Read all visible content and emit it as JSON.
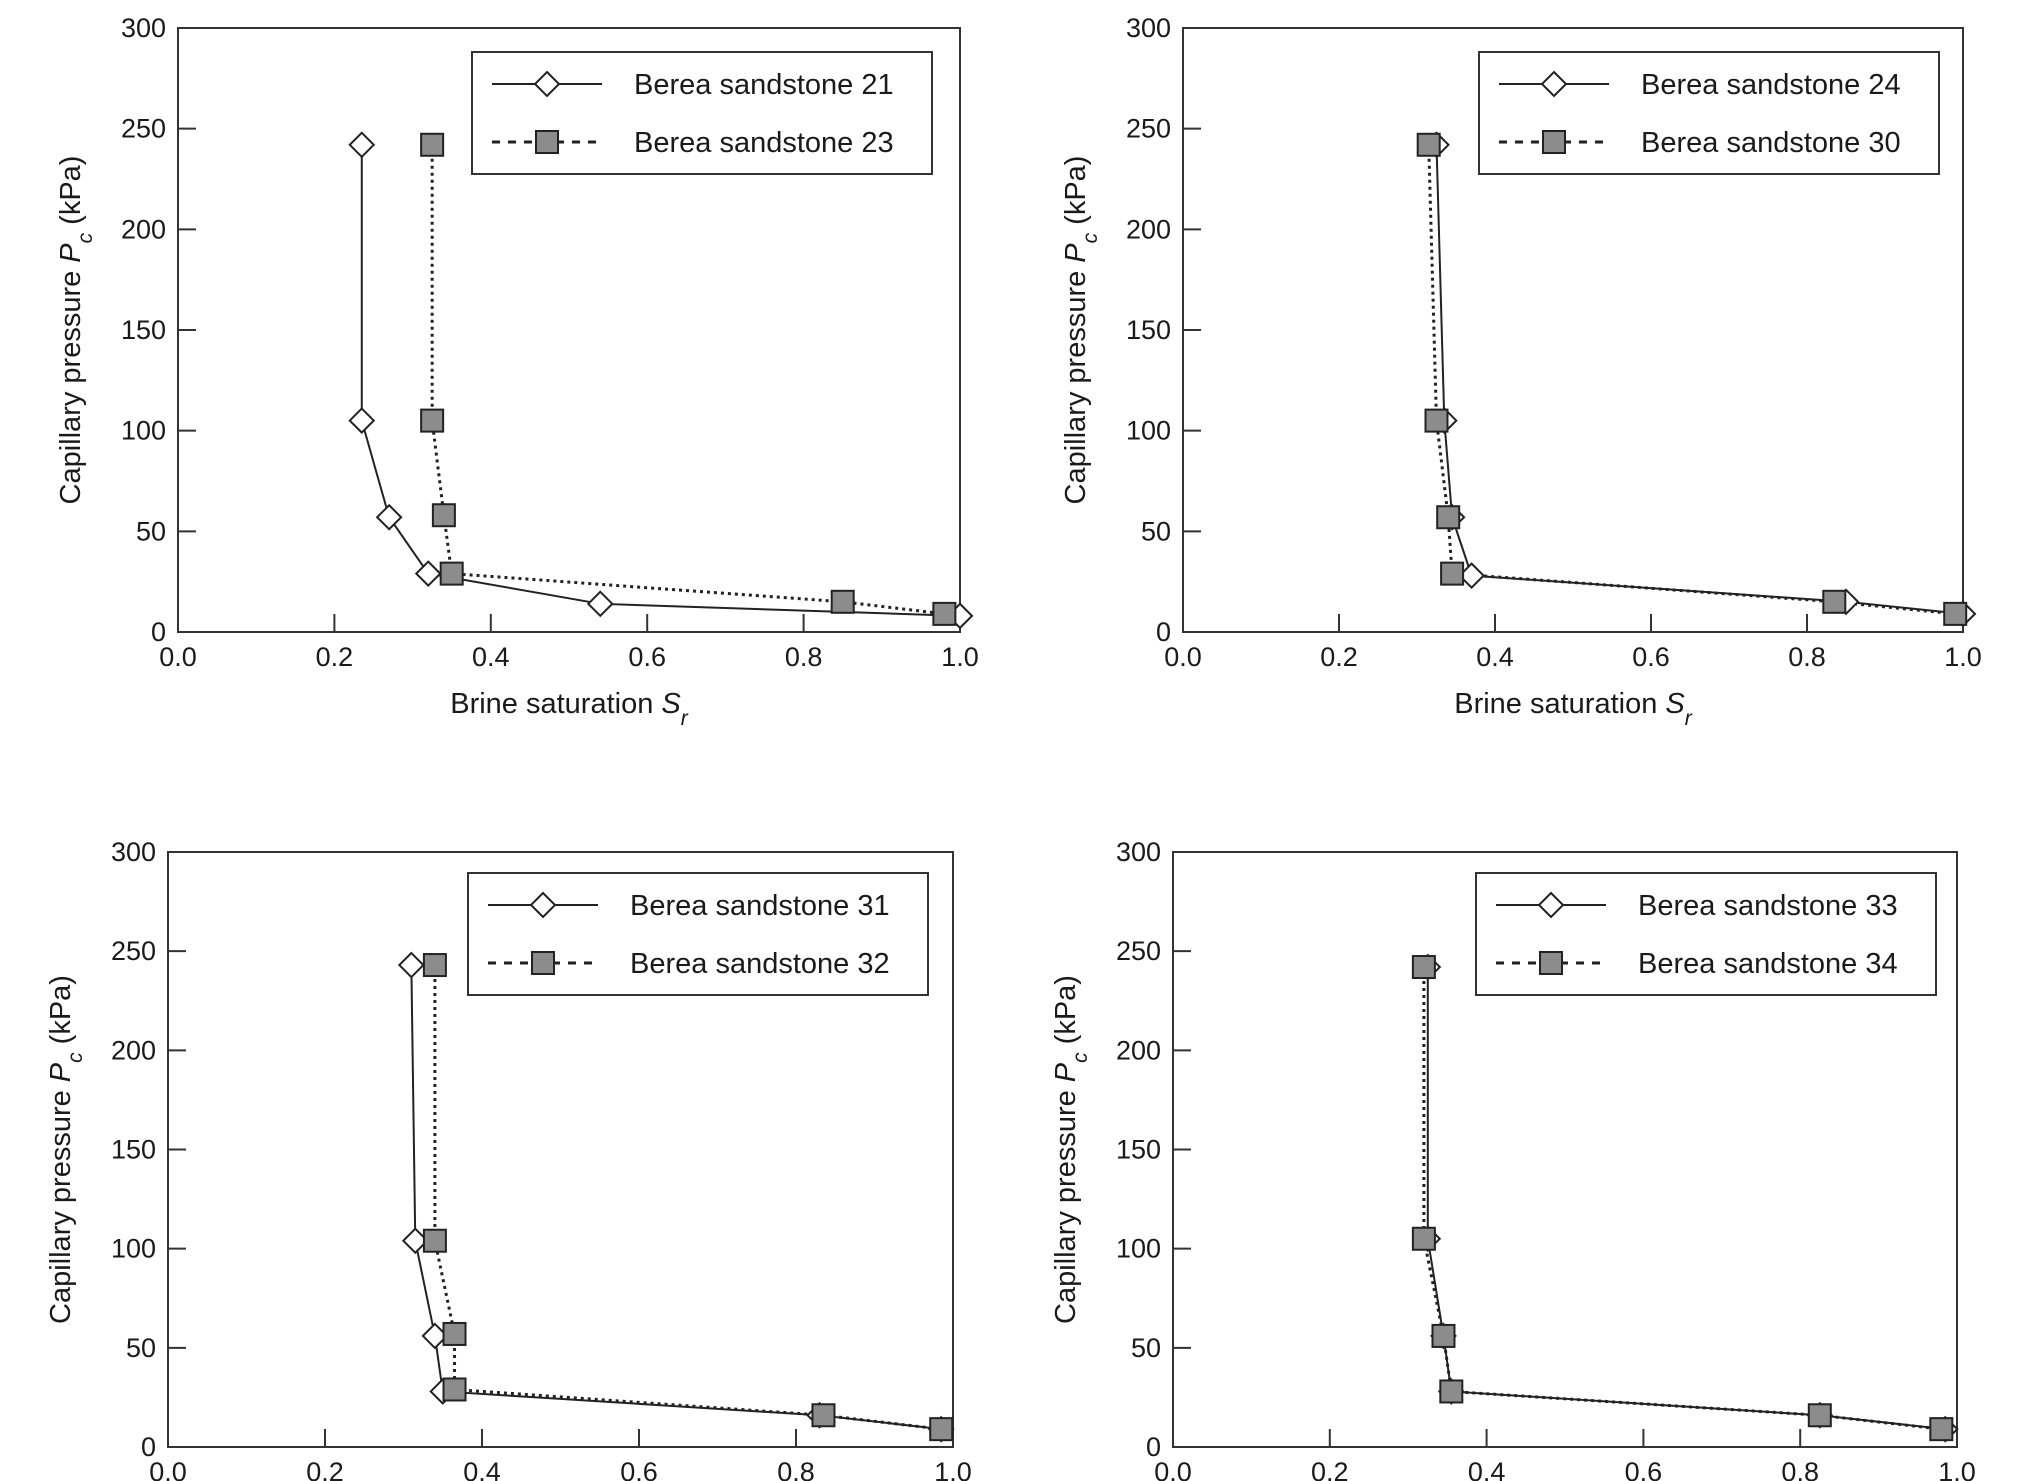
{
  "chart_data": [
    {
      "type": "line",
      "xlabel": "Brine saturation",
      "xlabel_symbol": "S",
      "xlabel_sub": "r",
      "ylabel": "Capillary pressure",
      "ylabel_symbol": "P",
      "ylabel_sub": "c",
      "ylabel_unit": "(kPa)",
      "xlim": [
        0,
        1
      ],
      "ylim": [
        0,
        300
      ],
      "xticks": [
        "0.0",
        "0.2",
        "0.4",
        "0.6",
        "0.8",
        "1.0"
      ],
      "yticks": [
        "0",
        "50",
        "100",
        "150",
        "200",
        "250",
        "300"
      ],
      "grid": false,
      "legend_position": "top-right",
      "series": [
        {
          "name": "Berea sandstone 21",
          "marker": "diamond",
          "line": "solid",
          "x": [
            0.235,
            0.235,
            0.27,
            0.32,
            0.54,
            1.0
          ],
          "y": [
            242,
            105,
            57,
            29,
            14,
            8
          ]
        },
        {
          "name": "Berea sandstone 23",
          "marker": "square",
          "line": "dotted",
          "x": [
            0.325,
            0.325,
            0.34,
            0.35,
            0.85,
            0.98
          ],
          "y": [
            242,
            105,
            58,
            29,
            15,
            9
          ]
        }
      ]
    },
    {
      "type": "line",
      "xlabel": "Brine saturation",
      "xlabel_symbol": "S",
      "xlabel_sub": "r",
      "ylabel": "Capillary pressure",
      "ylabel_symbol": "P",
      "ylabel_sub": "c",
      "ylabel_unit": "(kPa)",
      "xlim": [
        0,
        1
      ],
      "ylim": [
        0,
        300
      ],
      "xticks": [
        "0.0",
        "0.2",
        "0.4",
        "0.6",
        "0.8",
        "1.0"
      ],
      "yticks": [
        "0",
        "50",
        "100",
        "150",
        "200",
        "250",
        "300"
      ],
      "grid": false,
      "legend_position": "top-right",
      "series": [
        {
          "name": "Berea sandstone 24",
          "marker": "diamond",
          "line": "solid",
          "x": [
            0.325,
            0.335,
            0.345,
            0.37,
            0.85,
            1.0
          ],
          "y": [
            242,
            105,
            57,
            28,
            15,
            9
          ]
        },
        {
          "name": "Berea sandstone 30",
          "marker": "square",
          "line": "dotted",
          "x": [
            0.315,
            0.325,
            0.34,
            0.345,
            0.835,
            0.99
          ],
          "y": [
            242,
            105,
            57,
            29,
            15,
            9
          ]
        }
      ]
    },
    {
      "type": "line",
      "xlabel": "Brine saturation",
      "xlabel_symbol": "S",
      "xlabel_sub": "r",
      "ylabel": "Capillary pressure",
      "ylabel_symbol": "P",
      "ylabel_sub": "c",
      "ylabel_unit": "(kPa)",
      "xlim": [
        0,
        1
      ],
      "ylim": [
        0,
        300
      ],
      "xticks": [
        "0.0",
        "0.2",
        "0.4",
        "0.6",
        "0.8",
        "1.0"
      ],
      "yticks": [
        "0",
        "50",
        "100",
        "150",
        "200",
        "250",
        "300"
      ],
      "grid": false,
      "legend_position": "top-right",
      "series": [
        {
          "name": "Berea sandstone 31",
          "marker": "diamond",
          "line": "solid",
          "x": [
            0.31,
            0.315,
            0.34,
            0.35,
            0.83,
            0.985
          ],
          "y": [
            243,
            104,
            56,
            28,
            16,
            9
          ]
        },
        {
          "name": "Berea sandstone 32",
          "marker": "square",
          "line": "dotted",
          "x": [
            0.34,
            0.34,
            0.365,
            0.365,
            0.835,
            0.985
          ],
          "y": [
            243,
            104,
            57,
            29,
            16,
            9
          ]
        }
      ]
    },
    {
      "type": "line",
      "xlabel": "Brine saturation",
      "xlabel_symbol": "S",
      "xlabel_sub": "r",
      "ylabel": "Capillary pressure",
      "ylabel_symbol": "P",
      "ylabel_sub": "c",
      "ylabel_unit": "(kPa)",
      "xlim": [
        0,
        1
      ],
      "ylim": [
        0,
        300
      ],
      "xticks": [
        "0.0",
        "0.2",
        "0.4",
        "0.6",
        "0.8",
        "1.0"
      ],
      "yticks": [
        "0",
        "50",
        "100",
        "150",
        "200",
        "250",
        "300"
      ],
      "grid": false,
      "legend_position": "top-right",
      "series": [
        {
          "name": "Berea sandstone 33",
          "marker": "diamond",
          "line": "solid",
          "x": [
            0.325,
            0.325,
            0.345,
            0.355,
            0.825,
            0.985
          ],
          "y": [
            242,
            105,
            56,
            28,
            16,
            9
          ]
        },
        {
          "name": "Berea sandstone 34",
          "marker": "square",
          "line": "dotted",
          "x": [
            0.32,
            0.32,
            0.345,
            0.355,
            0.825,
            0.98
          ],
          "y": [
            242,
            105,
            56,
            28,
            16,
            9
          ]
        }
      ]
    }
  ],
  "colors": {
    "axis": "#333333",
    "diamond_fill": "#ffffff",
    "square_fill": "#8c8c8c",
    "line": "#222222"
  }
}
